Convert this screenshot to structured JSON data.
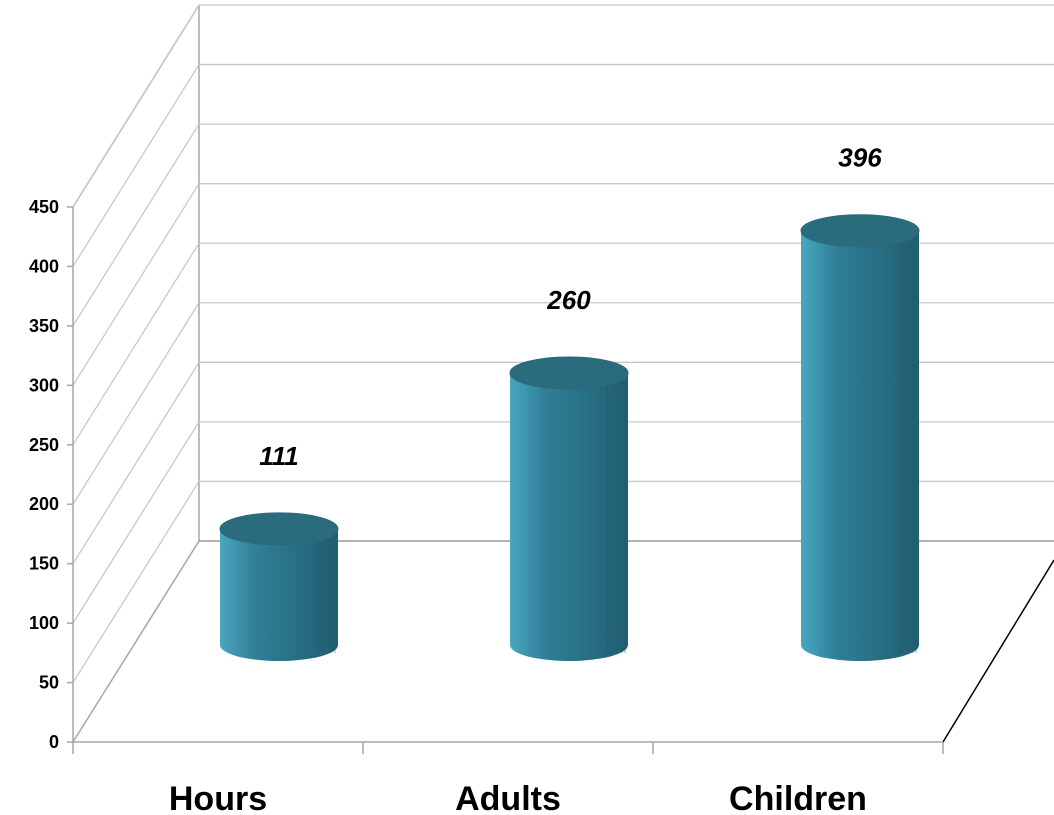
{
  "chart_data": {
    "type": "bar",
    "style": "3d-cylinder",
    "categories": [
      "Hours",
      "Adults",
      "Children"
    ],
    "values": [
      111,
      260,
      396
    ],
    "data_labels": [
      "111",
      "260",
      "396"
    ],
    "ylim": [
      0,
      450
    ],
    "yticks": [
      0,
      50,
      100,
      150,
      200,
      250,
      300,
      350,
      400,
      450
    ],
    "ytick_labels": [
      "0",
      "50",
      "100",
      "150",
      "200",
      "250",
      "300",
      "350",
      "400",
      "450"
    ],
    "title": "",
    "xlabel": "",
    "ylabel": "",
    "grid": true,
    "legend": "none",
    "colors": {
      "bar": "#2f7f96",
      "bar_light": "#4aa6c0",
      "bar_dark": "#215f72",
      "bar_top": "#2b6b7e",
      "grid": "#c8c8c8",
      "axis": "#a6a6a6",
      "floor_edge": "#000000"
    }
  }
}
